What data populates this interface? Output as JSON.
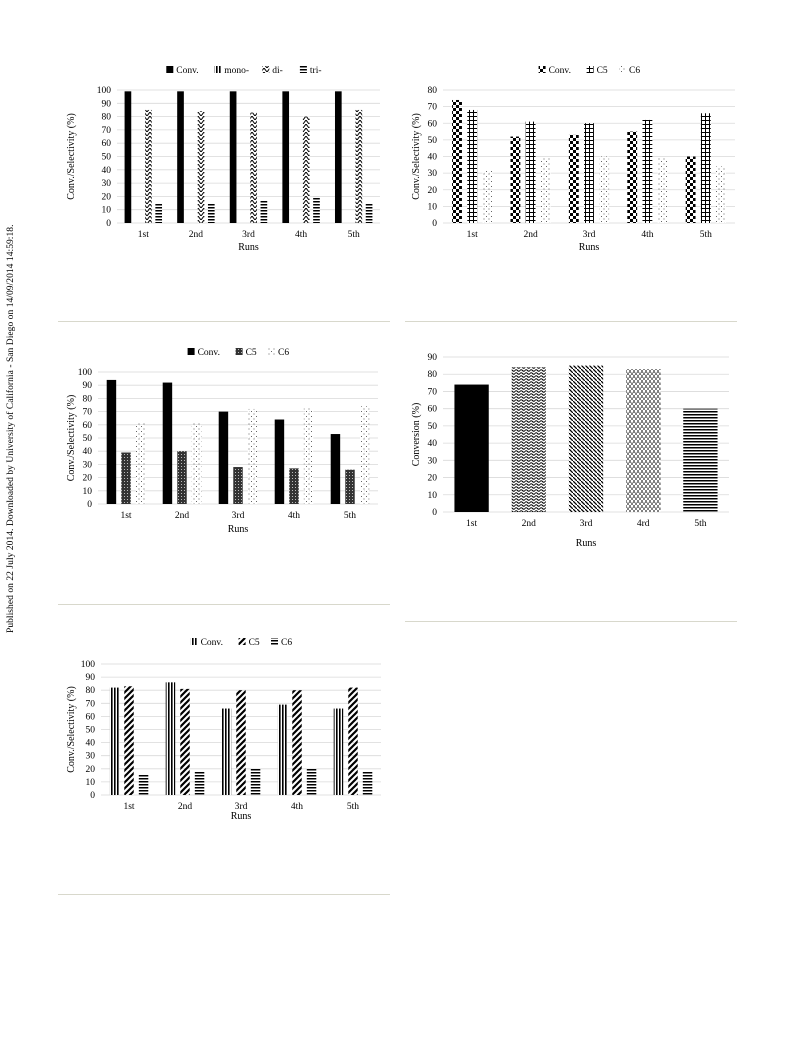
{
  "side_note": "Published on 22 July 2014. Downloaded by University of California - San Diego on 14/09/2014 14:59:18.",
  "chart_data": [
    {
      "id": "a",
      "type": "bar",
      "categories": [
        "1st",
        "2nd",
        "3rd",
        "4th",
        "5th"
      ],
      "series": [
        {
          "name": "Conv.",
          "pattern": "solid",
          "values": [
            99,
            99,
            99,
            99,
            99
          ]
        },
        {
          "name": "mono-",
          "pattern": "vlines",
          "values": [
            0,
            0,
            0,
            0,
            0
          ]
        },
        {
          "name": "di-",
          "pattern": "zigzag",
          "values": [
            85,
            84,
            83,
            80,
            85
          ]
        },
        {
          "name": "tri-",
          "pattern": "hlines",
          "values": [
            15,
            15,
            17,
            20,
            15
          ]
        }
      ],
      "xlabel": "Runs",
      "ylabel": "Conv./Selectivity (%)",
      "ylim": [
        0,
        100
      ],
      "ytick_step": 10,
      "grid": true,
      "legend": "top"
    },
    {
      "id": "b",
      "type": "bar",
      "categories": [
        "1st",
        "2nd",
        "3rd",
        "4th",
        "5th"
      ],
      "series": [
        {
          "name": "Conv.",
          "pattern": "checker",
          "values": [
            74,
            52,
            53,
            55,
            40
          ]
        },
        {
          "name": "C5",
          "pattern": "grid",
          "values": [
            68,
            61,
            60,
            62,
            66
          ]
        },
        {
          "name": "C6",
          "pattern": "dots",
          "values": [
            32,
            39,
            40,
            39,
            34
          ]
        }
      ],
      "xlabel": "Runs",
      "ylabel": "Conv./Selectivity (%)",
      "ylim": [
        0,
        80
      ],
      "ytick_step": 10,
      "grid": true,
      "legend": "top"
    },
    {
      "id": "c",
      "type": "bar",
      "categories": [
        "1st",
        "2nd",
        "3rd",
        "4th",
        "5th"
      ],
      "series": [
        {
          "name": "Conv.",
          "pattern": "solid",
          "values": [
            94,
            92,
            70,
            64,
            53
          ]
        },
        {
          "name": "C5",
          "pattern": "darkmesh",
          "values": [
            39,
            40,
            28,
            27,
            26
          ]
        },
        {
          "name": "C6",
          "pattern": "dots",
          "values": [
            61,
            61,
            72,
            73,
            74
          ]
        }
      ],
      "xlabel": "Runs",
      "ylabel": "Conv./Selectivity (%)",
      "ylim": [
        0,
        100
      ],
      "ytick_step": 10,
      "grid": true,
      "legend": "top"
    },
    {
      "id": "d",
      "type": "bar",
      "categories": [
        "1st",
        "2nd",
        "3rd",
        "4rd",
        "5th"
      ],
      "series": [
        {
          "name": "",
          "patterns": [
            "solid",
            "wave",
            "diag",
            "vdash",
            "hlines"
          ],
          "values": [
            74,
            84,
            85,
            83,
            60
          ]
        }
      ],
      "xlabel": "Runs",
      "ylabel": "Conversion (%)",
      "ylim": [
        0,
        90
      ],
      "ytick_step": 10,
      "grid": true,
      "legend": "none"
    },
    {
      "id": "e",
      "type": "bar",
      "categories": [
        "1st",
        "2nd",
        "3rd",
        "4th",
        "5th"
      ],
      "series": [
        {
          "name": "Conv.",
          "pattern": "vlines",
          "values": [
            82,
            86,
            66,
            69,
            66
          ]
        },
        {
          "name": "C5",
          "pattern": "diagthick",
          "values": [
            83,
            81,
            80,
            80,
            82
          ]
        },
        {
          "name": "C6",
          "pattern": "hlines",
          "values": [
            16,
            18,
            20,
            20,
            18
          ]
        }
      ],
      "xlabel": "Runs",
      "ylabel": "Conv./Selectivity (%)",
      "ylim": [
        0,
        100
      ],
      "ytick_step": 10,
      "grid": true,
      "legend": "top"
    }
  ]
}
